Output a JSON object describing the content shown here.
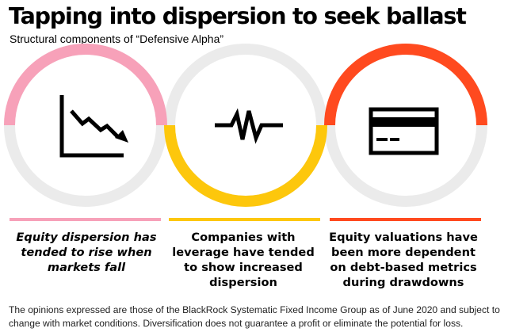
{
  "title": "Tapping into dispersion to seek ballast",
  "subtitle": "Structural components of “Defensive Alpha”",
  "colors": {
    "ring_grey": "#ebebeb",
    "pink": "#f7a1b9",
    "yellow": "#fdc70c",
    "orange": "#ff4a1f",
    "icon": "#000000"
  },
  "components": [
    {
      "icon": "declining-chart-icon",
      "accent": "pink",
      "text": "Equity dispersion has tended to rise when markets fall"
    },
    {
      "icon": "pulse-waveform-icon",
      "accent": "yellow",
      "text": "Companies with leverage have tended to show increased dispersion"
    },
    {
      "icon": "credit-card-icon",
      "accent": "orange",
      "text": "Equity valuations have been more dependent on debt-based metrics during drawdowns"
    }
  ],
  "footnote": "The opinions expressed are those of the BlackRock Systematic Fixed Income Group as of June 2020 and subject to change with market conditions. Diversification does not guarantee a profit or eliminate the potential for loss."
}
